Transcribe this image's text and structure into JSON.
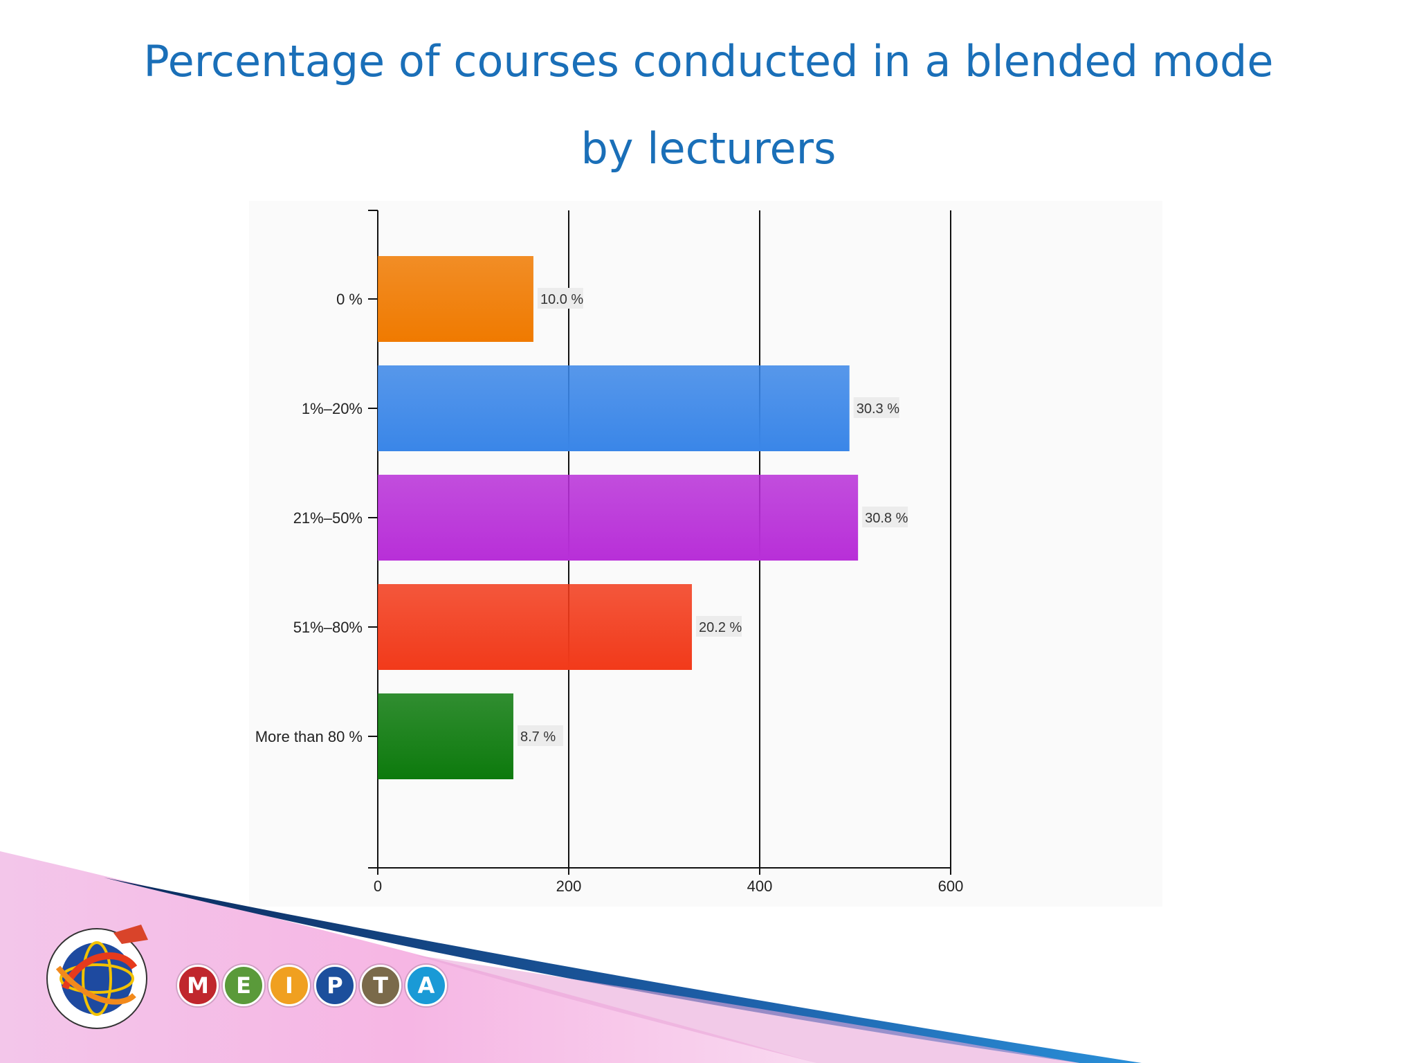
{
  "slide": {
    "title_line1": "Percentage of courses conducted in a blended mode",
    "title_line2": "by lecturers"
  },
  "chart_data": {
    "type": "bar",
    "orientation": "horizontal",
    "categories": [
      "0 %",
      "1%–20%",
      "21%–50%",
      "51%–80%",
      "More than 80 %"
    ],
    "values": [
      163,
      494,
      503,
      329,
      142
    ],
    "data_labels": [
      "10.0 %",
      "30.3 %",
      "30.8 %",
      "20.2 %",
      "8.7 %"
    ],
    "colors": [
      "#f07a00",
      "#3a86e8",
      "#b82fd8",
      "#f23a1a",
      "#0d7a0d"
    ],
    "xlim": [
      0,
      600
    ],
    "xticks": [
      0,
      200,
      400,
      600
    ],
    "grid": true,
    "legend": "none"
  },
  "branding": {
    "logo": "university-globe-emblem",
    "letters": [
      {
        "char": "M",
        "color": "#c0272d"
      },
      {
        "char": "E",
        "color": "#5a9a3a"
      },
      {
        "char": "I",
        "color": "#f0a020"
      },
      {
        "char": "P",
        "color": "#1c4f9c"
      },
      {
        "char": "T",
        "color": "#7a6a4a"
      },
      {
        "char": "A",
        "color": "#1a9ad6"
      }
    ]
  }
}
